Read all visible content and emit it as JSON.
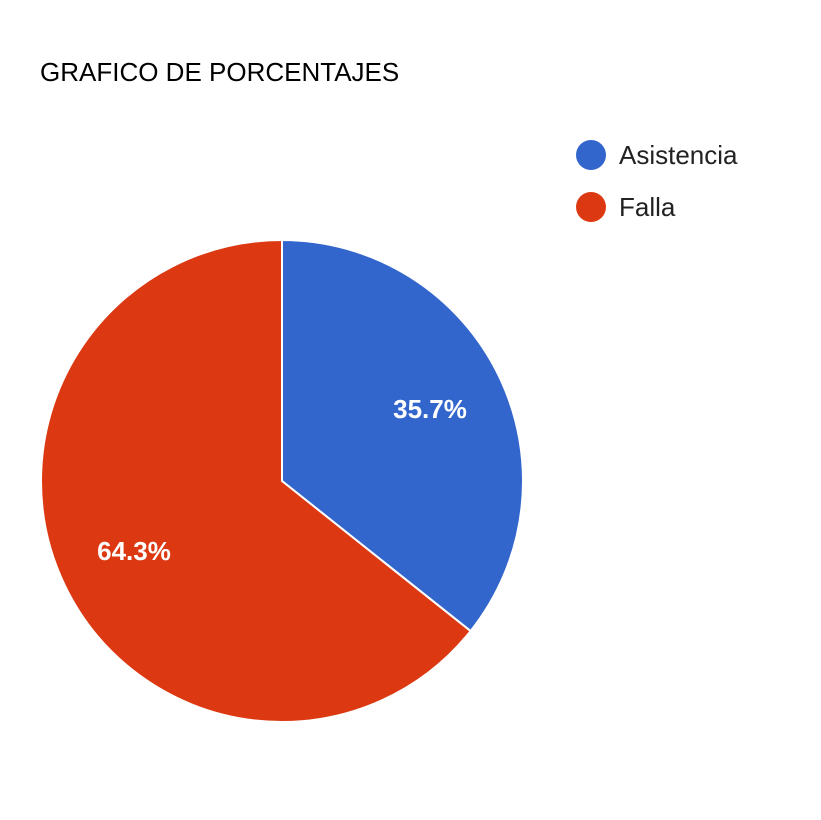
{
  "chart_data": {
    "type": "pie",
    "title": "GRAFICO DE PORCENTAJES",
    "legend_position": "top-right",
    "slices": [
      {
        "label": "Asistencia",
        "value": 35.7,
        "display": "35.7%",
        "color": "#3366cc"
      },
      {
        "label": "Falla",
        "value": 64.3,
        "display": "64.3%",
        "color": "#dc3912"
      }
    ]
  }
}
